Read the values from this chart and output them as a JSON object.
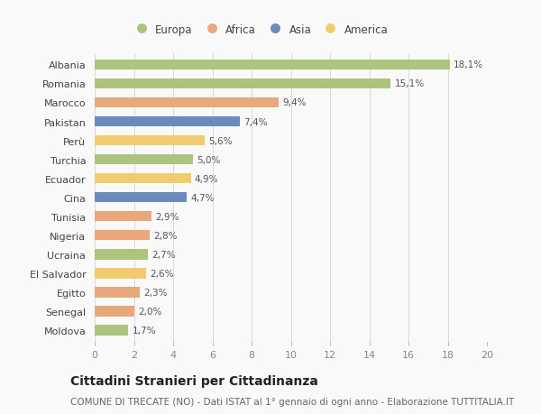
{
  "countries": [
    "Albania",
    "Romania",
    "Marocco",
    "Pakistan",
    "Perù",
    "Turchia",
    "Ecuador",
    "Cina",
    "Tunisia",
    "Nigeria",
    "Ucraina",
    "El Salvador",
    "Egitto",
    "Senegal",
    "Moldova"
  ],
  "values": [
    18.1,
    15.1,
    9.4,
    7.4,
    5.6,
    5.0,
    4.9,
    4.7,
    2.9,
    2.8,
    2.7,
    2.6,
    2.3,
    2.0,
    1.7
  ],
  "labels": [
    "18,1%",
    "15,1%",
    "9,4%",
    "7,4%",
    "5,6%",
    "5,0%",
    "4,9%",
    "4,7%",
    "2,9%",
    "2,8%",
    "2,7%",
    "2,6%",
    "2,3%",
    "2,0%",
    "1,7%"
  ],
  "continents": [
    "Europa",
    "Europa",
    "Africa",
    "Asia",
    "America",
    "Europa",
    "America",
    "Asia",
    "Africa",
    "Africa",
    "Europa",
    "America",
    "Africa",
    "Africa",
    "Europa"
  ],
  "continent_colors": {
    "Europa": "#adc47e",
    "Africa": "#e8a87c",
    "Asia": "#6b8cba",
    "America": "#f0cc6e"
  },
  "legend_order": [
    "Europa",
    "Africa",
    "Asia",
    "America"
  ],
  "xlim": [
    0,
    20
  ],
  "xticks": [
    0,
    2,
    4,
    6,
    8,
    10,
    12,
    14,
    16,
    18,
    20
  ],
  "title": "Cittadini Stranieri per Cittadinanza",
  "subtitle": "COMUNE DI TRECATE (NO) - Dati ISTAT al 1° gennaio di ogni anno - Elaborazione TUTTITALIA.IT",
  "bg_color": "#f9f9f9",
  "bar_height": 0.55,
  "title_fontsize": 10,
  "subtitle_fontsize": 7.5,
  "label_fontsize": 7.5,
  "tick_fontsize": 8,
  "legend_fontsize": 8.5
}
